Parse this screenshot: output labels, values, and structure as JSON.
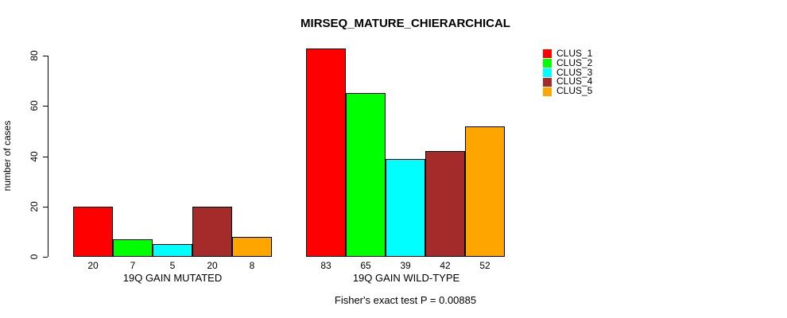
{
  "chart_data": {
    "type": "bar",
    "title": "MIRSEQ_MATURE_CHIERARCHICAL",
    "ylabel": "number of cases",
    "xlabel": "",
    "yticks": [
      0,
      20,
      40,
      60,
      80
    ],
    "ylim": [
      0,
      83
    ],
    "grid": false,
    "legend_position": "top-right",
    "bar_value_labels": true,
    "categories": [
      "19Q GAIN MUTATED",
      "19Q GAIN WILD-TYPE"
    ],
    "series": [
      {
        "name": "CLUS_1",
        "color": "#ff0000",
        "values": [
          20,
          83
        ]
      },
      {
        "name": "CLUS_2",
        "color": "#00ff00",
        "values": [
          7,
          65
        ]
      },
      {
        "name": "CLUS_3",
        "color": "#00ffff",
        "values": [
          5,
          39
        ]
      },
      {
        "name": "CLUS_4",
        "color": "#a52a2a",
        "values": [
          20,
          42
        ]
      },
      {
        "name": "CLUS_5",
        "color": "#ffa500",
        "values": [
          8,
          52
        ]
      }
    ],
    "annotation": "Fisher's exact test P = 0.00885"
  }
}
